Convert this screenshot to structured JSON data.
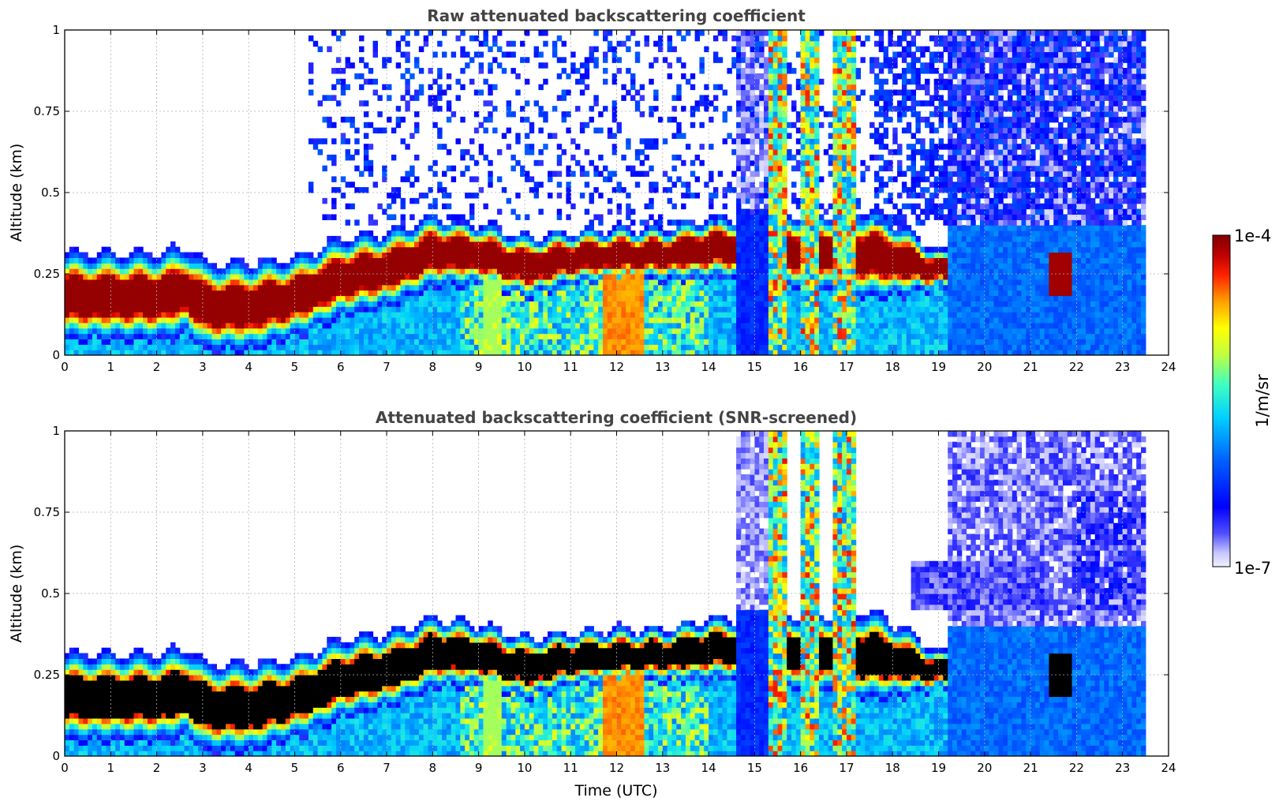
{
  "chart_data": [
    {
      "type": "heatmap",
      "title": "Raw attenuated backscattering coefficient",
      "xlabel": "",
      "ylabel": "Altitude (km)",
      "xlim": [
        0,
        24
      ],
      "ylim": [
        0,
        1
      ],
      "xticks": [
        "0",
        "1",
        "2",
        "3",
        "4",
        "5",
        "6",
        "7",
        "8",
        "9",
        "10",
        "11",
        "12",
        "13",
        "14",
        "15",
        "16",
        "17",
        "18",
        "19",
        "20",
        "21",
        "22",
        "23",
        "24"
      ],
      "yticks": [
        "0",
        "0.25",
        "0.5",
        "0.75",
        "1"
      ],
      "grid": true,
      "data_end_hour": 23.5,
      "layer": {
        "description_hours": [
          0,
          1,
          2,
          2.6,
          3,
          4,
          5,
          6,
          7,
          8,
          9,
          10,
          11,
          12,
          13,
          14,
          14.5,
          17.5,
          18,
          19
        ],
        "top_km": [
          0.28,
          0.28,
          0.28,
          0.3,
          0.25,
          0.25,
          0.27,
          0.33,
          0.35,
          0.4,
          0.38,
          0.34,
          0.36,
          0.37,
          0.37,
          0.4,
          0.4,
          0.41,
          0.38,
          0.3
        ],
        "base_km": [
          0.08,
          0.08,
          0.08,
          0.1,
          0.05,
          0.05,
          0.09,
          0.15,
          0.18,
          0.24,
          0.24,
          0.2,
          0.24,
          0.25,
          0.25,
          0.26,
          0.26,
          0.21,
          0.21,
          0.22
        ]
      },
      "cloud_columns_hours": [
        [
          14.3,
          14.4
        ],
        [
          15.3,
          15.7
        ],
        [
          16.0,
          16.3
        ],
        [
          16.7,
          17.1
        ]
      ]
    },
    {
      "type": "heatmap",
      "title": "Attenuated backscattering coefficient (SNR-screened)",
      "xlabel": "Time (UTC)",
      "ylabel": "Altitude (km)",
      "xlim": [
        0,
        24
      ],
      "ylim": [
        0,
        1
      ],
      "xticks": [
        "0",
        "1",
        "2",
        "3",
        "4",
        "5",
        "6",
        "7",
        "8",
        "9",
        "10",
        "11",
        "12",
        "13",
        "14",
        "15",
        "16",
        "17",
        "18",
        "19",
        "20",
        "21",
        "22",
        "23",
        "24"
      ],
      "yticks": [
        "0",
        "0.25",
        "0.5",
        "0.75",
        "1"
      ],
      "grid": true,
      "data_end_hour": 23.5
    }
  ],
  "colorbar": {
    "max_label": "1e-4",
    "min_label": "1e-7",
    "unit_label": "1/m/sr",
    "scale": "log",
    "range": [
      1e-07,
      0.0001
    ]
  }
}
